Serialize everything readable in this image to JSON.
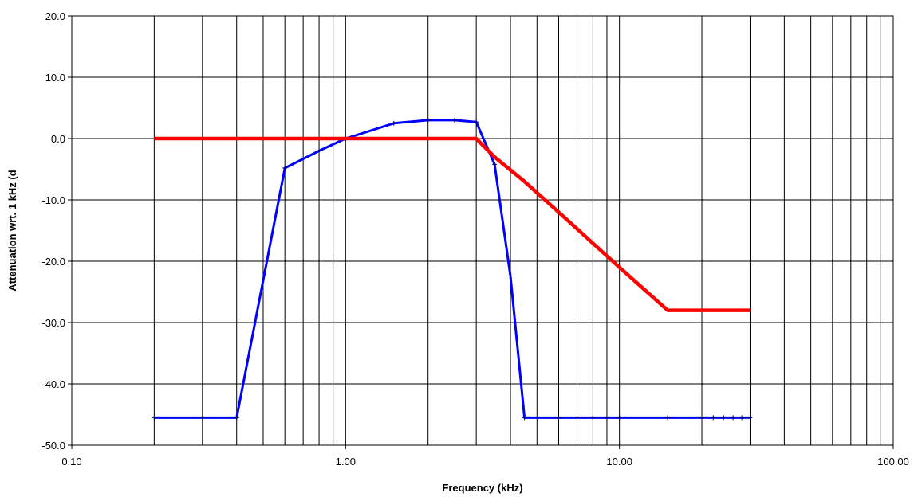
{
  "chart_data": {
    "type": "line",
    "xlabel": "Frequency (kHz)",
    "ylabel": "Attenuation wrt. 1 kHz (d",
    "x_scale": "log",
    "xlim": [
      0.1,
      100
    ],
    "ylim": [
      -50,
      20
    ],
    "x_ticks": [
      0.1,
      1,
      10,
      100
    ],
    "x_tick_labels": [
      "0.10",
      "1.00",
      "10.00",
      "100.00"
    ],
    "y_ticks": [
      20,
      10,
      0,
      -10,
      -20,
      -30,
      -40,
      -50
    ],
    "y_tick_labels": [
      "20.0",
      "10.0",
      "0.0",
      "-10.0",
      "-20.0",
      "-30.0",
      "-40.0",
      "-50.0"
    ],
    "grid": true,
    "legend": "none",
    "series": [
      {
        "color": "#0000ff",
        "markers": true,
        "points": [
          [
            0.2,
            -45.5
          ],
          [
            0.3,
            -45.5
          ],
          [
            0.4,
            -45.5
          ],
          [
            0.6,
            -4.8
          ],
          [
            0.8,
            -2.0
          ],
          [
            1.0,
            0.0
          ],
          [
            1.5,
            2.5
          ],
          [
            2.0,
            3.0
          ],
          [
            2.5,
            3.0
          ],
          [
            3.0,
            2.7
          ],
          [
            3.5,
            -4.2
          ],
          [
            4.0,
            -22.4
          ],
          [
            4.5,
            -45.5
          ],
          [
            6.0,
            -45.5
          ],
          [
            7.0,
            -45.5
          ],
          [
            8.0,
            -45.5
          ],
          [
            9.0,
            -45.5
          ],
          [
            10.0,
            -45.5
          ],
          [
            15.0,
            -45.5
          ],
          [
            20.0,
            -45.5
          ],
          [
            22.0,
            -45.5
          ],
          [
            24.0,
            -45.5
          ],
          [
            26.0,
            -45.5
          ],
          [
            28.0,
            -45.5
          ],
          [
            30.0,
            -45.5
          ]
        ]
      },
      {
        "color": "#ff0000",
        "markers": false,
        "points": [
          [
            0.2,
            0.0
          ],
          [
            1.0,
            0.0
          ],
          [
            3.0,
            0.0
          ],
          [
            3.5,
            -3.0
          ],
          [
            4.5,
            -7.0
          ],
          [
            6.0,
            -12.0
          ],
          [
            10.0,
            -21.0
          ],
          [
            15.0,
            -28.0
          ],
          [
            30.0,
            -28.0
          ]
        ]
      }
    ]
  }
}
